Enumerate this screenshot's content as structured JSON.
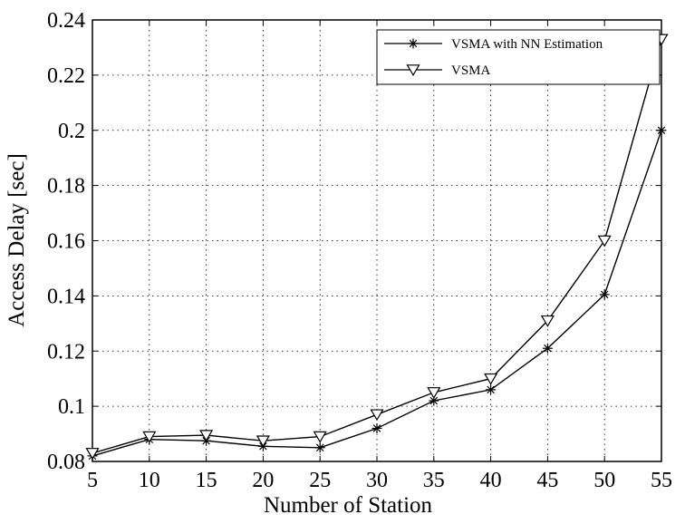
{
  "chart_data": {
    "type": "line",
    "xlabel": "Number of Station",
    "ylabel": "Access Delay [sec]",
    "xlim": [
      5,
      55
    ],
    "ylim": [
      0.08,
      0.24
    ],
    "x_ticks": [
      5,
      10,
      15,
      20,
      25,
      30,
      35,
      40,
      45,
      50,
      55
    ],
    "x_tick_labels": [
      "5",
      "10",
      "15",
      "20",
      "25",
      "30",
      "35",
      "40",
      "45",
      "50",
      "55"
    ],
    "y_ticks": [
      0.08,
      0.1,
      0.12,
      0.14,
      0.16,
      0.18,
      0.2,
      0.22,
      0.24
    ],
    "y_tick_labels": [
      "0.08",
      "0.1",
      "0.12",
      "0.14",
      "0.16",
      "0.18",
      "0.2",
      "0.22",
      "0.24"
    ],
    "grid": true,
    "legend_position": "top-right",
    "x": [
      5,
      10,
      15,
      20,
      25,
      30,
      35,
      40,
      45,
      50,
      55
    ],
    "series": [
      {
        "name": "VSMA with NN Estimation",
        "marker": "asterisk",
        "color": "#000000",
        "values": [
          0.082,
          0.088,
          0.0875,
          0.0855,
          0.085,
          0.092,
          0.102,
          0.106,
          0.121,
          0.1405,
          0.2
        ]
      },
      {
        "name": "VSMA",
        "marker": "triangle-down",
        "color": "#000000",
        "values": [
          0.083,
          0.089,
          0.0895,
          0.0875,
          0.089,
          0.097,
          0.105,
          0.11,
          0.131,
          0.16,
          0.233
        ]
      }
    ]
  }
}
